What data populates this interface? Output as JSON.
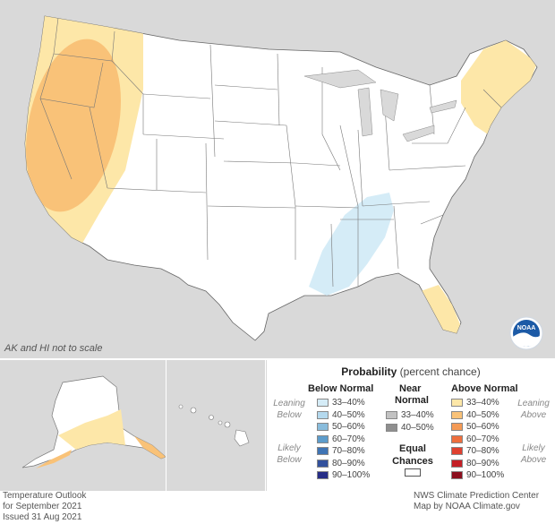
{
  "map": {
    "note": "AK and HI not to scale",
    "colors": {
      "background": "#d9d9d9",
      "land": "#ffffff",
      "above_33_40": "#fde7a8",
      "above_40_50": "#f9c278",
      "below_33_40": "#d5ecf7"
    },
    "logo": "noaa-logo"
  },
  "legend": {
    "title_bold": "Probability",
    "title_rest": "(percent chance)",
    "below_header": "Below Normal",
    "near_header_1": "Near",
    "near_header_2": "Normal",
    "above_header": "Above Normal",
    "leaning_below_1": "Leaning",
    "leaning_below_2": "Below",
    "likely_below_1": "Likely",
    "likely_below_2": "Below",
    "leaning_above_1": "Leaning",
    "leaning_above_2": "Above",
    "likely_above_1": "Likely",
    "likely_above_2": "Above",
    "equal_1": "Equal",
    "equal_2": "Chances",
    "below": [
      {
        "label": "33–40%",
        "color": "#d5ecf7"
      },
      {
        "label": "40–50%",
        "color": "#b4d9ee"
      },
      {
        "label": "50–60%",
        "color": "#89bcdc"
      },
      {
        "label": "60–70%",
        "color": "#5d9ccb"
      },
      {
        "label": "70–80%",
        "color": "#3f74b4"
      },
      {
        "label": "80–90%",
        "color": "#32519c"
      },
      {
        "label": "90–100%",
        "color": "#262d86"
      }
    ],
    "near": [
      {
        "label": "33–40%",
        "color": "#c2c2c2"
      },
      {
        "label": "40–50%",
        "color": "#8f8f8f"
      }
    ],
    "above": [
      {
        "label": "33–40%",
        "color": "#fde7a8"
      },
      {
        "label": "40–50%",
        "color": "#f9c278"
      },
      {
        "label": "50–60%",
        "color": "#f49a55"
      },
      {
        "label": "60–70%",
        "color": "#ee6f3e"
      },
      {
        "label": "70–80%",
        "color": "#df4130"
      },
      {
        "label": "80–90%",
        "color": "#c41f26"
      },
      {
        "label": "90–100%",
        "color": "#8b0f1e"
      }
    ]
  },
  "footer": {
    "left_1": "Temperature Outlook",
    "left_2": "for September 2021",
    "left_3": "Issued 31 Aug 2021",
    "right_1": "NWS Climate Prediction Center",
    "right_2": "Map by NOAA Climate.gov"
  }
}
